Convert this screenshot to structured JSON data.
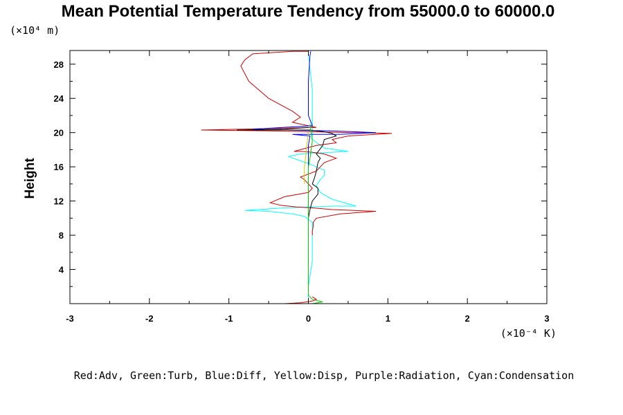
{
  "chart_data": {
    "type": "line",
    "title": "Mean Potential Temperature Tendency from 55000.0 to 60000.0",
    "ylabel": "Height",
    "y_unit": "(×10⁴ m)",
    "x_unit": "(×10⁻⁴ K)",
    "xlim": [
      -3,
      3
    ],
    "ylim": [
      0,
      29.6
    ],
    "x_ticks": [
      "-3",
      "-2",
      "-1",
      "0",
      "1",
      "2",
      "3"
    ],
    "y_ticks": [
      "4",
      "8",
      "12",
      "16",
      "20",
      "24",
      "28"
    ],
    "legend_text": "Red:Adv, Green:Turb, Blue:Diff, Yellow:Disp, Purple:Radiation, Cyan:Condensation",
    "series": [
      {
        "key": "condensation",
        "color": "#00ffff",
        "x": [
          0,
          0,
          0.05,
          0.05,
          0.05,
          -0.05,
          -0.2,
          -0.5,
          -0.8,
          -0.3,
          0.3,
          0.6,
          0.3,
          0.15,
          0.1,
          0.15,
          0.2,
          0.2,
          0.05,
          -0.1,
          -0.25,
          -0.1,
          0.1,
          0.3,
          0.5,
          0.2,
          0.05,
          0.05,
          0.05,
          0
        ],
        "y": [
          0.1,
          2,
          5,
          8,
          9.5,
          10.2,
          10.5,
          10.8,
          10.9,
          11.2,
          11.4,
          11.4,
          12.2,
          13,
          13.8,
          14.5,
          15,
          15.6,
          16.2,
          16.7,
          17.2,
          17.5,
          17.6,
          17.7,
          17.8,
          18.2,
          19.2,
          21,
          25,
          29.2
        ]
      },
      {
        "key": "advection",
        "color": "#cc0000",
        "x": [
          0.05,
          0.05,
          0.06,
          0.06,
          0.1,
          0.4,
          0.85,
          0.3,
          0.05,
          -0.15,
          -0.35,
          -0.48,
          -0.3,
          0.0,
          0.05,
          -0.05,
          -0.1,
          0.1,
          0.2,
          0.35,
          0.2,
          0.05,
          -0.1,
          -0.18,
          0.1,
          0.35,
          0.3,
          0.5,
          1.05,
          0.05,
          -0.5,
          -1.35,
          0.1,
          -0.2,
          -0.1,
          -0.2,
          -0.5,
          -0.75,
          -0.85,
          -0.8,
          -0.7,
          -0.2,
          0.0
        ],
        "y": [
          8,
          8.5,
          9,
          9.5,
          10,
          10.5,
          10.8,
          11,
          11.2,
          11.3,
          11.5,
          11.8,
          12.5,
          13,
          13.5,
          14.5,
          14.8,
          15.5,
          16.5,
          17,
          17.5,
          17.7,
          17.8,
          17.8,
          18.5,
          18.8,
          19.2,
          19.6,
          19.9,
          20.1,
          20.2,
          20.3,
          20.6,
          21.2,
          21.8,
          22.5,
          24,
          26,
          27.8,
          28.5,
          29.2,
          29.5,
          29.5
        ]
      },
      {
        "key": "diffusion",
        "color": "#0000ff",
        "x": [
          0,
          0,
          0,
          0.02,
          -0.2,
          0.4,
          0.85,
          0.3,
          -0.3,
          -0.7,
          0.05,
          0,
          0,
          0.02,
          0.03
        ],
        "y": [
          8,
          12,
          18.5,
          19.6,
          19.8,
          19.8,
          20.0,
          20.2,
          20.3,
          20.4,
          20.8,
          22,
          26,
          29.0,
          29.5
        ]
      },
      {
        "key": "total",
        "color": "#000000",
        "x": [
          0,
          0,
          0.02,
          0.05,
          0.12,
          0.12,
          0.05,
          0.08,
          0.1,
          0.12,
          0.15,
          0.1,
          0.18,
          0.2,
          0.35,
          0.3,
          0.2,
          0.1,
          0.02,
          -0.4,
          -0.9,
          -0.3,
          0.0
        ],
        "y": [
          8,
          10,
          11,
          12,
          12.8,
          13.5,
          14,
          14.8,
          15.5,
          16.5,
          17,
          17.5,
          18.5,
          19.2,
          19.6,
          19.9,
          20.1,
          20.2,
          20.3,
          20.3,
          20.3,
          20.4,
          20.6
        ]
      },
      {
        "key": "turbulence",
        "color": "#00cc00",
        "x": [
          0.05,
          0.18,
          0.05,
          0,
          0,
          0.02,
          0.05,
          0.02
        ],
        "y": [
          0,
          0.2,
          0.5,
          1,
          16,
          17,
          19,
          21
        ]
      },
      {
        "key": "dispersion",
        "color": "#cccc00",
        "x": [
          -0.05,
          -0.05,
          -0.03,
          -0.02,
          0
        ],
        "y": [
          14,
          16,
          17.5,
          18.5,
          20
        ]
      },
      {
        "key": "surface-advection",
        "color": "#cc0000",
        "x": [
          -0.3,
          -0.1,
          0.05,
          0.1,
          0.05
        ],
        "y": [
          0.0,
          0.1,
          0.3,
          0.5,
          0.8
        ]
      }
    ]
  }
}
